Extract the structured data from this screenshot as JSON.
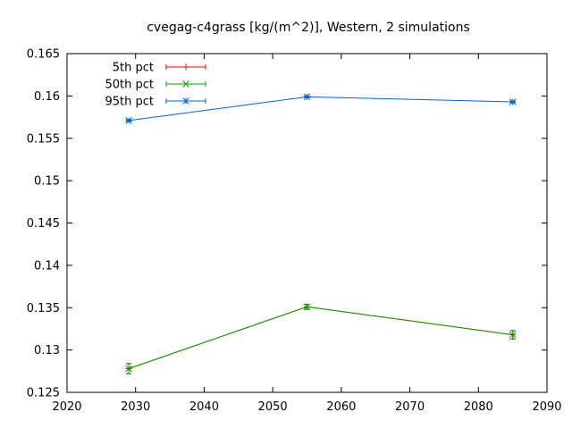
{
  "chart_data": {
    "type": "line",
    "title": "cvegag-c4grass [kg/(m^2)], Western, 2 simulations",
    "xlabel": "",
    "ylabel": "",
    "xlim": [
      2020,
      2090
    ],
    "ylim": [
      0.125,
      0.165
    ],
    "xticks": [
      2020,
      2030,
      2040,
      2050,
      2060,
      2070,
      2080,
      2090
    ],
    "yticks": [
      0.125,
      0.13,
      0.135,
      0.14,
      0.145,
      0.15,
      0.155,
      0.16,
      0.165
    ],
    "ytick_labels": [
      "0.125",
      "0.13",
      "0.135",
      "0.14",
      "0.145",
      "0.15",
      "0.155",
      "0.16",
      "0.165"
    ],
    "grid": false,
    "legend_position": "top-left",
    "x": [
      2029,
      2055,
      2085
    ],
    "series": [
      {
        "name": "5th pct",
        "color": "#ff0000",
        "marker": "plus",
        "values": [
          0.1278,
          0.1351,
          0.1318
        ],
        "err": [
          0.0006,
          0.0003,
          0.0005
        ]
      },
      {
        "name": "50th pct",
        "color": "#00a000",
        "marker": "x",
        "values": [
          0.1278,
          0.1351,
          0.1318
        ],
        "err": [
          0.0006,
          0.0003,
          0.0005
        ]
      },
      {
        "name": "95th pct",
        "color": "#0066cc",
        "marker": "star",
        "values": [
          0.1571,
          0.1599,
          0.1593
        ],
        "err": [
          0.0001,
          0.0001,
          0.0001
        ]
      }
    ]
  }
}
